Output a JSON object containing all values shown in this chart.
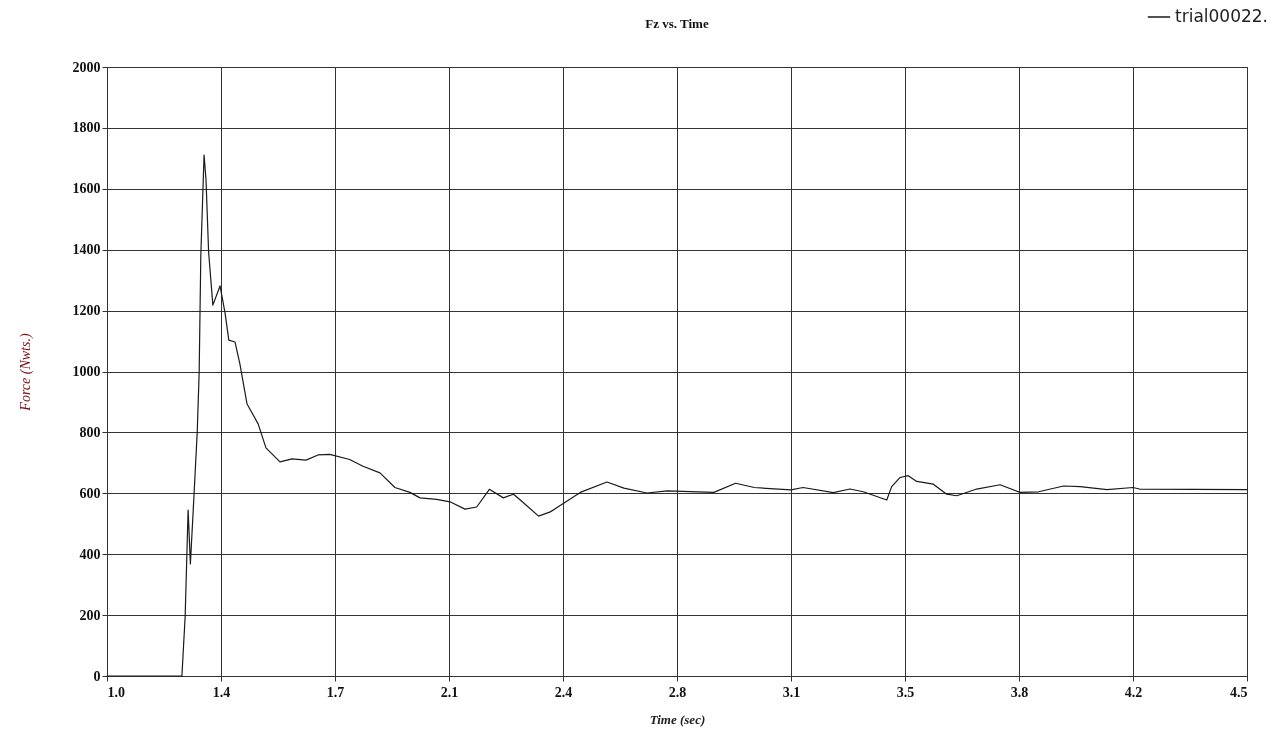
{
  "chart_data": {
    "type": "line",
    "title": "Fz vs. Time",
    "xlabel": "Time (sec)",
    "ylabel": "Force (Nwts.)",
    "xlim": [
      1.0,
      4.5
    ],
    "xticks": [
      {
        "value": 1.0,
        "label": "1.0"
      },
      {
        "value": 1.35,
        "label": "1.4"
      },
      {
        "value": 1.7,
        "label": "1.7"
      },
      {
        "value": 2.05,
        "label": "2.1"
      },
      {
        "value": 2.4,
        "label": "2.4"
      },
      {
        "value": 2.75,
        "label": "2.8"
      },
      {
        "value": 3.1,
        "label": "3.1"
      },
      {
        "value": 3.45,
        "label": "3.5"
      },
      {
        "value": 3.8,
        "label": "3.8"
      },
      {
        "value": 4.15,
        "label": "4.2"
      },
      {
        "value": 4.5,
        "label": "4.5"
      }
    ],
    "ylim": [
      0,
      2000
    ],
    "yticks": [
      0,
      200,
      400,
      600,
      800,
      1000,
      1200,
      1400,
      1600,
      1800,
      2000
    ],
    "grid": true,
    "legend": "top right",
    "marker": "none",
    "line_style": "solid",
    "series": [
      {
        "name": "trial00022.",
        "color": "#1a1a1a",
        "x": [
          1.0,
          1.05,
          1.1,
          1.15,
          1.2,
          1.23,
          1.24,
          1.249,
          1.256,
          1.267,
          1.277,
          1.283,
          1.288,
          1.298,
          1.304,
          1.312,
          1.325,
          1.347,
          1.362,
          1.374,
          1.393,
          1.408,
          1.43,
          1.464,
          1.488,
          1.531,
          1.568,
          1.611,
          1.648,
          1.684,
          1.745,
          1.786,
          1.838,
          1.884,
          1.93,
          1.961,
          2.012,
          2.053,
          2.099,
          2.135,
          2.174,
          2.217,
          2.248,
          2.269,
          2.325,
          2.361,
          2.402,
          2.453,
          2.535,
          2.587,
          2.658,
          2.72,
          2.863,
          2.93,
          2.987,
          3.1,
          3.137,
          3.23,
          3.281,
          3.322,
          3.394,
          3.409,
          3.435,
          3.46,
          3.486,
          3.537,
          3.578,
          3.609,
          3.67,
          3.742,
          3.803,
          3.86,
          3.937,
          3.988,
          4.07,
          4.15,
          4.17,
          4.5
        ],
        "values": [
          0,
          0,
          0,
          0,
          0,
          0,
          197,
          545,
          368,
          591,
          801,
          998,
          1379,
          1711,
          1629,
          1392,
          1218,
          1281,
          1195,
          1103,
          1097,
          1025,
          893,
          828,
          749,
          703,
          713,
          709,
          726,
          728,
          711,
          689,
          667,
          619,
          603,
          585,
          580,
          572,
          548,
          555,
          613,
          585,
          597,
          578,
          525,
          539,
          567,
          603,
          637,
          617,
          601,
          608,
          603,
          633,
          619,
          611,
          619,
          602,
          614,
          605,
          578,
          622,
          652,
          658,
          639,
          630,
          597,
          592,
          614,
          628,
          603,
          605,
          624,
          622,
          612,
          619,
          614,
          612
        ]
      }
    ]
  }
}
